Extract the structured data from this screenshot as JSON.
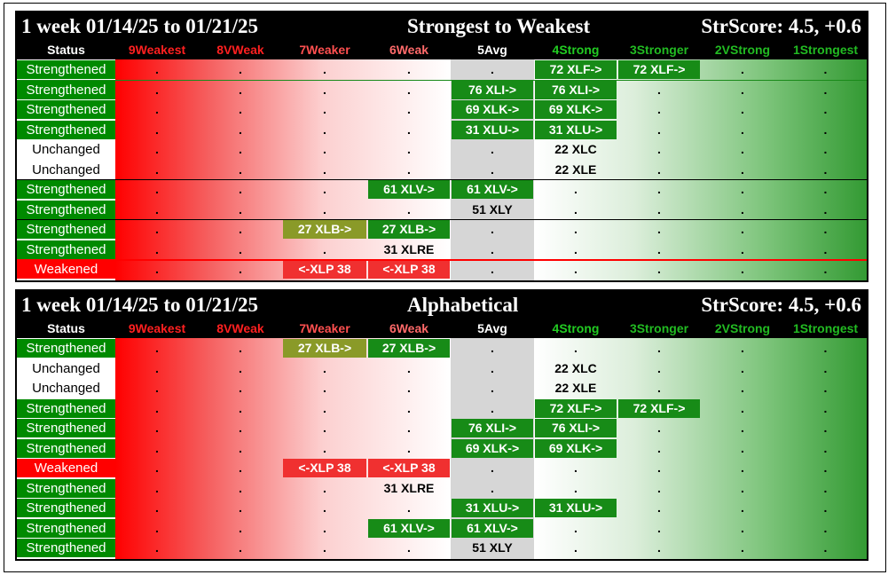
{
  "columns": [
    {
      "label": "Status",
      "color": "#ffffff"
    },
    {
      "label": "9Weakest",
      "color": "#ff2020"
    },
    {
      "label": "8VWeak",
      "color": "#ff2020"
    },
    {
      "label": "7Weaker",
      "color": "#ff5050"
    },
    {
      "label": "6Weak",
      "color": "#ff6a6a"
    },
    {
      "label": "5Avg",
      "color": "#ffffff"
    },
    {
      "label": "4Strong",
      "color": "#22cc22"
    },
    {
      "label": "3Stronger",
      "color": "#22bb22"
    },
    {
      "label": "2VStrong",
      "color": "#22bb22"
    },
    {
      "label": "1Strongest",
      "color": "#22bb22"
    }
  ],
  "panels": [
    {
      "title_left": "1 week 01/14/25 to 01/21/25",
      "title_mid": "Strongest to Weakest",
      "title_right": "StrScore: 4.5, +0.6",
      "rows": [
        {
          "status": "Strengthened",
          "kind": "strengthened",
          "cells": [
            ".",
            ".",
            ".",
            ".",
            ".",
            "72 XLF->",
            "72 XLF->",
            ".",
            "."
          ]
        },
        {
          "status": "Strengthened",
          "kind": "strengthened",
          "cells": [
            ".",
            ".",
            ".",
            ".",
            "76 XLI->",
            "76 XLI->",
            ".",
            ".",
            "."
          ]
        },
        {
          "status": "Strengthened",
          "kind": "strengthened",
          "cells": [
            ".",
            ".",
            ".",
            ".",
            "69 XLK->",
            "69 XLK->",
            ".",
            ".",
            "."
          ]
        },
        {
          "status": "Strengthened",
          "kind": "strengthened",
          "cells": [
            ".",
            ".",
            ".",
            ".",
            "31 XLU->",
            "31 XLU->",
            ".",
            ".",
            "."
          ]
        },
        {
          "status": "Unchanged",
          "kind": "unchanged",
          "cells": [
            ".",
            ".",
            ".",
            ".",
            ".",
            "22 XLC",
            ".",
            ".",
            "."
          ]
        },
        {
          "status": "Unchanged",
          "kind": "unchanged",
          "cells": [
            ".",
            ".",
            ".",
            ".",
            ".",
            "22 XLE",
            ".",
            ".",
            "."
          ]
        },
        {
          "status": "Strengthened",
          "kind": "strengthened",
          "cells": [
            ".",
            ".",
            ".",
            "61 XLV->",
            "61 XLV->",
            ".",
            ".",
            ".",
            "."
          ]
        },
        {
          "status": "Strengthened",
          "kind": "strengthened",
          "cells": [
            ".",
            ".",
            ".",
            ".",
            "51 XLY",
            ".",
            ".",
            ".",
            "."
          ]
        },
        {
          "status": "Strengthened",
          "kind": "strengthened",
          "cells": [
            ".",
            ".",
            "27 XLB->",
            "27 XLB->",
            ".",
            ".",
            ".",
            ".",
            "."
          ]
        },
        {
          "status": "Strengthened",
          "kind": "strengthened",
          "cells": [
            ".",
            ".",
            ".",
            "31 XLRE",
            ".",
            ".",
            ".",
            ".",
            "."
          ]
        },
        {
          "status": "Weakened",
          "kind": "weakened",
          "cells": [
            ".",
            ".",
            "<-XLP 38",
            "<-XLP 38",
            ".",
            ".",
            ".",
            ".",
            "."
          ]
        }
      ]
    },
    {
      "title_left": "1 week 01/14/25 to 01/21/25",
      "title_mid": "Alphabetical",
      "title_right": "StrScore: 4.5, +0.6",
      "rows": [
        {
          "status": "Strengthened",
          "kind": "strengthened",
          "cells": [
            ".",
            ".",
            "27 XLB->",
            "27 XLB->",
            ".",
            ".",
            ".",
            ".",
            "."
          ]
        },
        {
          "status": "Unchanged",
          "kind": "unchanged",
          "cells": [
            ".",
            ".",
            ".",
            ".",
            ".",
            "22 XLC",
            ".",
            ".",
            "."
          ]
        },
        {
          "status": "Unchanged",
          "kind": "unchanged",
          "cells": [
            ".",
            ".",
            ".",
            ".",
            ".",
            "22 XLE",
            ".",
            ".",
            "."
          ]
        },
        {
          "status": "Strengthened",
          "kind": "strengthened",
          "cells": [
            ".",
            ".",
            ".",
            ".",
            ".",
            "72 XLF->",
            "72 XLF->",
            ".",
            "."
          ]
        },
        {
          "status": "Strengthened",
          "kind": "strengthened",
          "cells": [
            ".",
            ".",
            ".",
            ".",
            "76 XLI->",
            "76 XLI->",
            ".",
            ".",
            "."
          ]
        },
        {
          "status": "Strengthened",
          "kind": "strengthened",
          "cells": [
            ".",
            ".",
            ".",
            ".",
            "69 XLK->",
            "69 XLK->",
            ".",
            ".",
            "."
          ]
        },
        {
          "status": "Weakened",
          "kind": "weakened",
          "cells": [
            ".",
            ".",
            "<-XLP 38",
            "<-XLP 38",
            ".",
            ".",
            ".",
            ".",
            "."
          ]
        },
        {
          "status": "Strengthened",
          "kind": "strengthened",
          "cells": [
            ".",
            ".",
            ".",
            "31 XLRE",
            ".",
            ".",
            ".",
            ".",
            "."
          ]
        },
        {
          "status": "Strengthened",
          "kind": "strengthened",
          "cells": [
            ".",
            ".",
            ".",
            ".",
            "31 XLU->",
            "31 XLU->",
            ".",
            ".",
            "."
          ]
        },
        {
          "status": "Strengthened",
          "kind": "strengthened",
          "cells": [
            ".",
            ".",
            ".",
            "61 XLV->",
            "61 XLV->",
            ".",
            ".",
            ".",
            "."
          ]
        },
        {
          "status": "Strengthened",
          "kind": "strengthened",
          "cells": [
            ".",
            ".",
            ".",
            ".",
            "51 XLY",
            ".",
            ".",
            ".",
            "."
          ]
        }
      ]
    }
  ]
}
